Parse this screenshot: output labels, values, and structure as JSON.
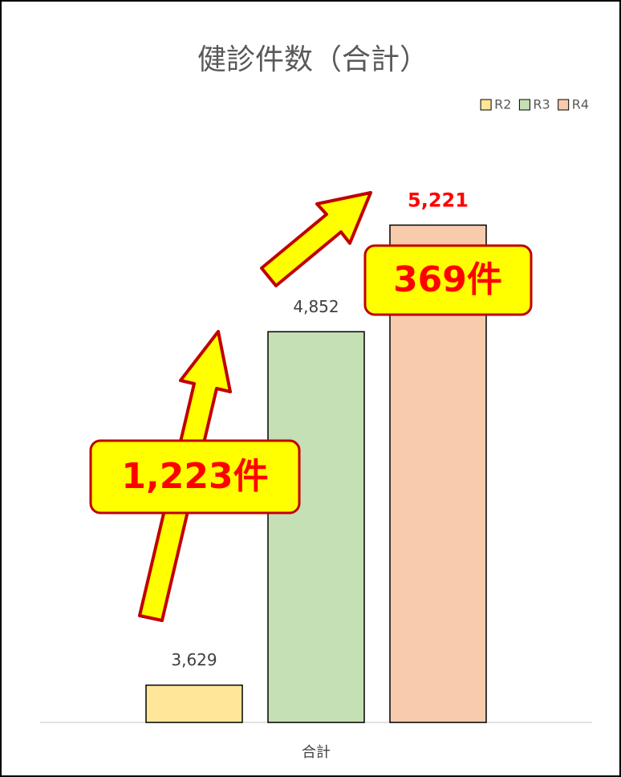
{
  "chart_data": {
    "type": "bar",
    "title": "健診件数（合計）",
    "categories": [
      "合計"
    ],
    "series": [
      {
        "name": "R2",
        "color": "#ffe699",
        "values": [
          3629
        ],
        "value_labels": [
          "3,629"
        ]
      },
      {
        "name": "R3",
        "color": "#c5e0b4",
        "values": [
          4852
        ],
        "value_labels": [
          "4,852"
        ]
      },
      {
        "name": "R4",
        "color": "#f8cbad",
        "values": [
          5221
        ],
        "value_labels": [
          "5,221"
        ]
      }
    ],
    "ylim": [
      3500,
      5500
    ],
    "legend": "top-right",
    "annotations": [
      "1,223件",
      "369件"
    ]
  }
}
